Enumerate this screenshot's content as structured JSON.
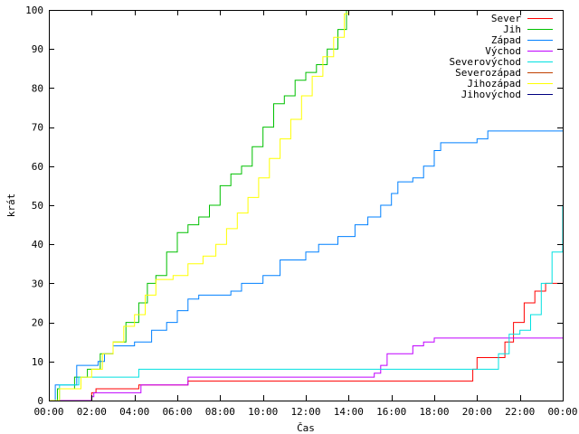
{
  "chart_data": {
    "type": "line",
    "title": "",
    "xlabel": "Čas",
    "ylabel": "krát",
    "x_tick_labels": [
      "00:00",
      "02:00",
      "04:00",
      "06:00",
      "08:00",
      "10:00",
      "12:00",
      "14:00",
      "16:00",
      "18:00",
      "20:00",
      "22:00",
      "00:00"
    ],
    "y_tick_labels": [
      "0",
      "10",
      "20",
      "30",
      "40",
      "50",
      "60",
      "70",
      "80",
      "90",
      "100"
    ],
    "xlim_hours": [
      0,
      24
    ],
    "ylim": [
      0,
      100
    ],
    "grid": false,
    "legend_position": "top-right",
    "series": [
      {
        "name": "Sever",
        "color": "#ff0000",
        "points": [
          [
            0,
            0
          ],
          [
            1.95,
            0
          ],
          [
            2.0,
            2
          ],
          [
            2.2,
            3
          ],
          [
            4.0,
            3
          ],
          [
            4.2,
            4
          ],
          [
            6.4,
            4
          ],
          [
            6.5,
            5
          ],
          [
            19.6,
            5
          ],
          [
            19.8,
            8
          ],
          [
            20.0,
            11
          ],
          [
            21.0,
            11
          ],
          [
            21.3,
            15
          ],
          [
            21.7,
            20
          ],
          [
            22.2,
            25
          ],
          [
            22.7,
            28
          ],
          [
            23.2,
            30
          ],
          [
            24,
            30
          ]
        ]
      },
      {
        "name": "Jih",
        "color": "#00c000",
        "points": [
          [
            0,
            0
          ],
          [
            0.4,
            3
          ],
          [
            0.9,
            3
          ],
          [
            1.2,
            6
          ],
          [
            1.8,
            8
          ],
          [
            2.4,
            12
          ],
          [
            3.0,
            15
          ],
          [
            3.6,
            20
          ],
          [
            4.2,
            25
          ],
          [
            4.6,
            30
          ],
          [
            5.0,
            32
          ],
          [
            5.5,
            38
          ],
          [
            6.0,
            43
          ],
          [
            6.5,
            45
          ],
          [
            7.0,
            47
          ],
          [
            7.5,
            50
          ],
          [
            8.0,
            55
          ],
          [
            8.5,
            58
          ],
          [
            9.0,
            60
          ],
          [
            9.5,
            65
          ],
          [
            10.0,
            70
          ],
          [
            10.5,
            76
          ],
          [
            11.0,
            78
          ],
          [
            11.5,
            82
          ],
          [
            12.0,
            84
          ],
          [
            12.5,
            86
          ],
          [
            13.0,
            90
          ],
          [
            13.5,
            95
          ],
          [
            13.9,
            100
          ]
        ]
      },
      {
        "name": "Západ",
        "color": "#0080ff",
        "points": [
          [
            0,
            0
          ],
          [
            0.3,
            4
          ],
          [
            0.8,
            4
          ],
          [
            1.3,
            9
          ],
          [
            2.3,
            10
          ],
          [
            2.6,
            12
          ],
          [
            3.0,
            14
          ],
          [
            4.0,
            15
          ],
          [
            4.8,
            18
          ],
          [
            5.5,
            20
          ],
          [
            6.0,
            23
          ],
          [
            6.5,
            26
          ],
          [
            7.0,
            27
          ],
          [
            8.5,
            28
          ],
          [
            9.0,
            30
          ],
          [
            10.0,
            32
          ],
          [
            10.8,
            36
          ],
          [
            12.0,
            38
          ],
          [
            12.6,
            40
          ],
          [
            13.5,
            42
          ],
          [
            14.3,
            45
          ],
          [
            14.9,
            47
          ],
          [
            15.5,
            50
          ],
          [
            16.0,
            53
          ],
          [
            16.3,
            56
          ],
          [
            17.0,
            57
          ],
          [
            17.5,
            60
          ],
          [
            18.0,
            64
          ],
          [
            18.3,
            66
          ],
          [
            20.0,
            67
          ],
          [
            20.5,
            69
          ],
          [
            24,
            69
          ]
        ]
      },
      {
        "name": "Východ",
        "color": "#c000ff",
        "points": [
          [
            0,
            0
          ],
          [
            1.9,
            0
          ],
          [
            2.0,
            1
          ],
          [
            2.1,
            2
          ],
          [
            4.0,
            2
          ],
          [
            4.3,
            4
          ],
          [
            6.4,
            4
          ],
          [
            6.5,
            6
          ],
          [
            15.0,
            6
          ],
          [
            15.2,
            7
          ],
          [
            15.5,
            9
          ],
          [
            15.8,
            12
          ],
          [
            17.0,
            14
          ],
          [
            17.5,
            15
          ],
          [
            18.0,
            16
          ],
          [
            24,
            16
          ]
        ]
      },
      {
        "name": "Severovýchod",
        "color": "#00e0e0",
        "points": [
          [
            0,
            0
          ],
          [
            0.5,
            4
          ],
          [
            1.0,
            4
          ],
          [
            1.4,
            6
          ],
          [
            4.1,
            6
          ],
          [
            4.2,
            8
          ],
          [
            20.6,
            8
          ],
          [
            21.0,
            12
          ],
          [
            21.5,
            17
          ],
          [
            22.0,
            18
          ],
          [
            22.5,
            22
          ],
          [
            23.0,
            30
          ],
          [
            23.5,
            38
          ],
          [
            24,
            50
          ]
        ]
      },
      {
        "name": "Severozápad",
        "color": "#c04000",
        "points": []
      },
      {
        "name": "Jihozápad",
        "color": "#ffff00",
        "points": [
          [
            0,
            0
          ],
          [
            0.5,
            3
          ],
          [
            1.0,
            3
          ],
          [
            1.5,
            6
          ],
          [
            2.0,
            8
          ],
          [
            2.5,
            12
          ],
          [
            3.0,
            15
          ],
          [
            3.5,
            19
          ],
          [
            4.0,
            22
          ],
          [
            4.5,
            27
          ],
          [
            5.0,
            31
          ],
          [
            5.8,
            32
          ],
          [
            6.5,
            35
          ],
          [
            7.2,
            37
          ],
          [
            7.8,
            40
          ],
          [
            8.3,
            44
          ],
          [
            8.8,
            48
          ],
          [
            9.3,
            52
          ],
          [
            9.8,
            57
          ],
          [
            10.3,
            62
          ],
          [
            10.8,
            67
          ],
          [
            11.3,
            72
          ],
          [
            11.8,
            78
          ],
          [
            12.3,
            83
          ],
          [
            12.8,
            88
          ],
          [
            13.3,
            93
          ],
          [
            13.8,
            99
          ],
          [
            14.0,
            100
          ]
        ]
      },
      {
        "name": "Jihovýchod",
        "color": "#000080",
        "points": []
      }
    ]
  }
}
